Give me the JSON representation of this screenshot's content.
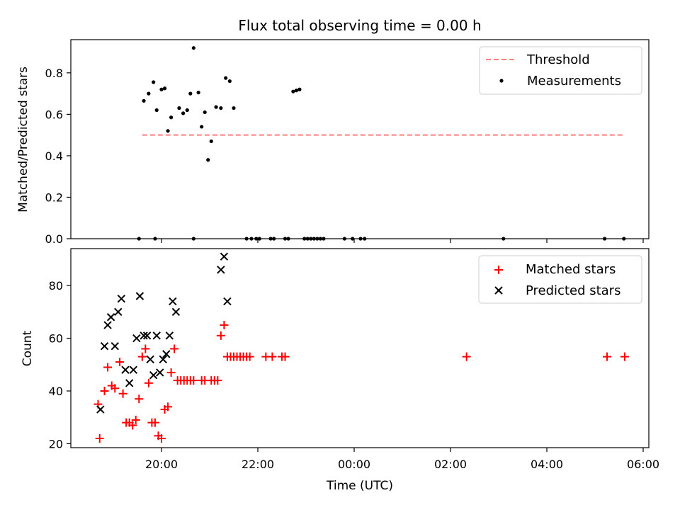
{
  "figure": {
    "title": "Flux total observing time = 0.00 h"
  },
  "chart_data": [
    {
      "type": "scatter",
      "ylabel": "Matched/Predicted stars",
      "xlabel": "",
      "ylim": [
        0,
        0.96
      ],
      "yticks": [
        "0.0",
        "0.2",
        "0.4",
        "0.6",
        "0.8"
      ],
      "ytick_values": [
        0,
        0.2,
        0.4,
        0.6,
        0.8
      ],
      "legend_position": "upper right",
      "threshold": {
        "name": "Threshold",
        "y": 0.5,
        "x_start": "19:36",
        "x_end": "05:36",
        "color": "#ff7f7f",
        "style": "dashed"
      },
      "series": [
        {
          "name": "Measurements",
          "color": "#000000",
          "marker": "dot",
          "points": [
            [
              "19:32",
              0.0
            ],
            [
              "19:38",
              0.665
            ],
            [
              "19:44",
              0.7
            ],
            [
              "19:50",
              0.755
            ],
            [
              "19:54",
              0.62
            ],
            [
              "20:00",
              0.72
            ],
            [
              "20:04",
              0.725
            ],
            [
              "20:08",
              0.52
            ],
            [
              "20:12",
              0.585
            ],
            [
              "20:22",
              0.63
            ],
            [
              "20:27",
              0.605
            ],
            [
              "20:32",
              0.62
            ],
            [
              "20:36",
              0.7
            ],
            [
              "20:40",
              0.92
            ],
            [
              "20:46",
              0.705
            ],
            [
              "20:50",
              0.54
            ],
            [
              "20:54",
              0.61
            ],
            [
              "20:58",
              0.38
            ],
            [
              "21:02",
              0.47
            ],
            [
              "21:08",
              0.635
            ],
            [
              "21:14",
              0.63
            ],
            [
              "21:20",
              0.775
            ],
            [
              "21:25",
              0.76
            ],
            [
              "21:30",
              0.63
            ],
            [
              "19:52",
              0.0
            ],
            [
              "20:40",
              0.0
            ],
            [
              "21:46",
              0.0
            ],
            [
              "21:52",
              0.0
            ],
            [
              "21:58",
              0.0
            ],
            [
              "22:02",
              0.0
            ],
            [
              "22:16",
              0.0
            ],
            [
              "22:20",
              0.0
            ],
            [
              "22:34",
              0.0
            ],
            [
              "22:38",
              0.0
            ],
            [
              "22:44",
              0.71
            ],
            [
              "22:48",
              0.715
            ],
            [
              "22:52",
              0.72
            ],
            [
              "22:58",
              0.0
            ],
            [
              "23:02",
              0.0
            ],
            [
              "23:06",
              0.0
            ],
            [
              "23:10",
              0.0
            ],
            [
              "23:14",
              0.0
            ],
            [
              "23:18",
              0.0
            ],
            [
              "23:22",
              0.0
            ],
            [
              "23:48",
              0.0
            ],
            [
              "23:58",
              0.0
            ],
            [
              "00:08",
              0.0
            ],
            [
              "00:13",
              0.0
            ],
            [
              "03:06",
              0.0
            ],
            [
              "05:12",
              0.0
            ],
            [
              "05:36",
              0.0
            ]
          ]
        }
      ]
    },
    {
      "type": "scatter",
      "ylabel": "Count",
      "xlabel": "Time (UTC)",
      "ylim": [
        18.5,
        94
      ],
      "yticks": [
        "20",
        "40",
        "60",
        "80"
      ],
      "ytick_values": [
        20,
        40,
        60,
        80
      ],
      "xticks": [
        "20:00",
        "22:00",
        "00:00",
        "02:00",
        "04:00",
        "06:00"
      ],
      "legend_position": "upper right",
      "series": [
        {
          "name": "Matched stars",
          "color": "#ff0000",
          "marker": "plus",
          "points": [
            [
              "18:41",
              35
            ],
            [
              "18:43",
              22
            ],
            [
              "18:49",
              40
            ],
            [
              "18:53",
              49
            ],
            [
              "18:58",
              42
            ],
            [
              "19:02",
              41
            ],
            [
              "19:08",
              51
            ],
            [
              "19:12",
              39
            ],
            [
              "19:16",
              28
            ],
            [
              "19:20",
              28
            ],
            [
              "19:24",
              27
            ],
            [
              "19:28",
              29
            ],
            [
              "19:32",
              37
            ],
            [
              "19:36",
              53
            ],
            [
              "19:40",
              56
            ],
            [
              "19:44",
              43
            ],
            [
              "19:48",
              28
            ],
            [
              "19:52",
              28
            ],
            [
              "19:56",
              23
            ],
            [
              "20:00",
              22
            ],
            [
              "20:04",
              33
            ],
            [
              "20:08",
              34
            ],
            [
              "20:12",
              47
            ],
            [
              "20:16",
              56
            ],
            [
              "20:20",
              44
            ],
            [
              "20:24",
              44
            ],
            [
              "20:28",
              44
            ],
            [
              "20:32",
              44
            ],
            [
              "20:36",
              44
            ],
            [
              "20:40",
              44
            ],
            [
              "20:50",
              44
            ],
            [
              "20:54",
              44
            ],
            [
              "21:02",
              44
            ],
            [
              "21:06",
              44
            ],
            [
              "21:10",
              44
            ],
            [
              "21:14",
              61
            ],
            [
              "21:18",
              65
            ],
            [
              "21:22",
              53
            ],
            [
              "21:26",
              53
            ],
            [
              "21:30",
              53
            ],
            [
              "21:34",
              53
            ],
            [
              "21:38",
              53
            ],
            [
              "21:42",
              53
            ],
            [
              "21:46",
              53
            ],
            [
              "21:50",
              53
            ],
            [
              "22:10",
              53
            ],
            [
              "22:18",
              53
            ],
            [
              "22:30",
              53
            ],
            [
              "22:34",
              53
            ],
            [
              "02:20",
              53
            ],
            [
              "05:15",
              53
            ],
            [
              "05:37",
              53
            ]
          ]
        },
        {
          "name": "Predicted stars",
          "color": "#000000",
          "marker": "x",
          "points": [
            [
              "18:44",
              33
            ],
            [
              "18:49",
              57
            ],
            [
              "18:53",
              65
            ],
            [
              "18:57",
              68
            ],
            [
              "19:02",
              57
            ],
            [
              "19:06",
              70
            ],
            [
              "19:10",
              75
            ],
            [
              "19:15",
              48
            ],
            [
              "19:20",
              43
            ],
            [
              "19:25",
              48
            ],
            [
              "19:29",
              60
            ],
            [
              "19:33",
              76
            ],
            [
              "19:38",
              61
            ],
            [
              "19:42",
              61
            ],
            [
              "19:46",
              52
            ],
            [
              "19:50",
              46
            ],
            [
              "19:54",
              61
            ],
            [
              "19:58",
              47
            ],
            [
              "20:02",
              52
            ],
            [
              "20:06",
              54
            ],
            [
              "20:10",
              61
            ],
            [
              "20:14",
              74
            ],
            [
              "20:18",
              70
            ],
            [
              "21:14",
              86
            ],
            [
              "21:18",
              91
            ],
            [
              "21:22",
              74
            ]
          ]
        }
      ]
    }
  ]
}
